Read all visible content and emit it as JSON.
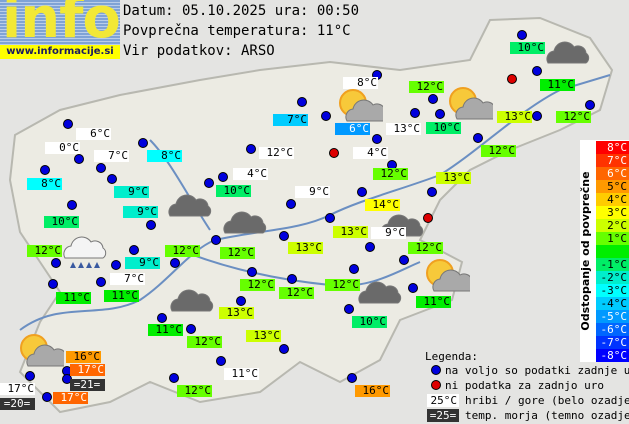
{
  "header": {
    "logo": "info",
    "site": "www.informacije.si",
    "date_line": "Datum: 05.10.2025 ura: 00:50",
    "avg_line": "Povprečna temperatura: 11°C",
    "source_line": "Vir podatkov: ARSO",
    "average_temperature": 11
  },
  "scale": {
    "title": "Odstopanje od povprečne temperature:",
    "rows": [
      {
        "label": "8°C",
        "color": "#ff0000",
        "text": "#ffffff"
      },
      {
        "label": "7°C",
        "color": "#ff3300",
        "text": "#ffffff"
      },
      {
        "label": "6°C",
        "color": "#ff6600",
        "text": "#ffffff"
      },
      {
        "label": "5°C",
        "color": "#ff9900",
        "text": "#000000"
      },
      {
        "label": "4°C",
        "color": "#ffcc00",
        "text": "#000000"
      },
      {
        "label": "3°C",
        "color": "#ffff00",
        "text": "#000000"
      },
      {
        "label": "2°C",
        "color": "#ccff00",
        "text": "#000000"
      },
      {
        "label": "1°C",
        "color": "#66ff00",
        "text": "#000000"
      },
      {
        "label": "",
        "color": "#00ee00",
        "text": "#000000"
      },
      {
        "label": "-1°C",
        "color": "#00ee66",
        "text": "#000000"
      },
      {
        "label": "-2°C",
        "color": "#00eecc",
        "text": "#000000"
      },
      {
        "label": "-3°C",
        "color": "#00ffff",
        "text": "#000000"
      },
      {
        "label": "-4°C",
        "color": "#00ccff",
        "text": "#000000"
      },
      {
        "label": "-5°C",
        "color": "#0099ff",
        "text": "#ffffff"
      },
      {
        "label": "-6°C",
        "color": "#0066ff",
        "text": "#ffffff"
      },
      {
        "label": "-7°C",
        "color": "#0033ff",
        "text": "#ffffff"
      },
      {
        "label": "-8°C",
        "color": "#0000ff",
        "text": "#ffffff"
      }
    ]
  },
  "stations": [
    {
      "t": "6°C",
      "kind": "mountain"
    },
    {
      "t": "0°C",
      "kind": "mountain"
    },
    {
      "t": "7°C",
      "kind": "mountain"
    },
    {
      "t": "8°C",
      "kind": "land"
    },
    {
      "t": "8°C",
      "kind": "land"
    },
    {
      "t": "9°C",
      "kind": "land"
    },
    {
      "t": "9°C",
      "kind": "land"
    },
    {
      "t": "10°C",
      "kind": "land"
    },
    {
      "t": "12°C",
      "kind": "land"
    },
    {
      "t": "9°C",
      "kind": "land"
    },
    {
      "t": "12°C",
      "kind": "land"
    },
    {
      "t": "7°C",
      "kind": "mountain"
    },
    {
      "t": "11°C",
      "kind": "land"
    },
    {
      "t": "11°C",
      "kind": "land"
    },
    {
      "t": "8°C",
      "kind": "mountain"
    },
    {
      "t": "7°C",
      "kind": "land"
    },
    {
      "t": "6°C",
      "kind": "land"
    },
    {
      "t": "13°C",
      "kind": "mountain"
    },
    {
      "t": "4°C",
      "kind": "mountain"
    },
    {
      "t": "12°C",
      "kind": "mountain"
    },
    {
      "t": "4°C",
      "kind": "mountain"
    },
    {
      "t": "10°C",
      "kind": "land"
    },
    {
      "t": "12°C",
      "kind": "land"
    },
    {
      "t": "9°C",
      "kind": "mountain"
    },
    {
      "t": "14°C",
      "kind": "land"
    },
    {
      "t": "13°C",
      "kind": "land"
    },
    {
      "t": "9°C",
      "kind": "mountain"
    },
    {
      "t": "13°C",
      "kind": "land"
    },
    {
      "t": "12°C",
      "kind": "land"
    },
    {
      "t": "10°C",
      "kind": "land"
    },
    {
      "t": "11°C",
      "kind": "land"
    },
    {
      "t": "12°C",
      "kind": "land"
    },
    {
      "t": "10°C",
      "kind": "land"
    },
    {
      "t": "12°C",
      "kind": "land"
    },
    {
      "t": "13°C",
      "kind": "land"
    },
    {
      "t": "12°C",
      "kind": "land"
    },
    {
      "t": "13°C",
      "kind": "land"
    },
    {
      "t": "12°C",
      "kind": "land"
    },
    {
      "t": "12°C",
      "kind": "land"
    },
    {
      "t": "12°C",
      "kind": "land"
    },
    {
      "t": "12°C",
      "kind": "land"
    },
    {
      "t": "11°C",
      "kind": "land"
    },
    {
      "t": "10°C",
      "kind": "land"
    },
    {
      "t": "13°C",
      "kind": "land"
    },
    {
      "t": "12°C",
      "kind": "land"
    },
    {
      "t": "11°C",
      "kind": "land"
    },
    {
      "t": "13°C",
      "kind": "land"
    },
    {
      "t": "11°C",
      "kind": "mountain"
    },
    {
      "t": "12°C",
      "kind": "land"
    },
    {
      "t": "16°C",
      "kind": "land"
    },
    {
      "t": "16°C",
      "kind": "land"
    },
    {
      "t": "17°C",
      "kind": "land"
    },
    {
      "t": "=21=",
      "kind": "sea"
    },
    {
      "t": "17°C",
      "kind": "mountain"
    },
    {
      "t": "=20=",
      "kind": "sea"
    },
    {
      "t": "17°C",
      "kind": "land"
    }
  ],
  "dots_blue_count": 54,
  "dots_red_count": 3,
  "weather_icons": [
    "sun-cloud",
    "sun-cloud",
    "sun-cloud",
    "sun-cloud",
    "cloud",
    "cloud",
    "cloud",
    "cloud",
    "cloud",
    "cloud",
    "rain-cloud"
  ],
  "legend": {
    "title": "Legenda:",
    "blue": "na voljo so podatki zadnje ure",
    "red": "ni podatka za zadnjo uro",
    "mountain_sample": "25°C",
    "mountain_text": "hribi / gore (belo ozadje)",
    "sea_sample": "=25=",
    "sea_text": "temp. morja (temno ozadje)",
    "blue_color": "#0000dd",
    "red_color": "#dd0000"
  }
}
